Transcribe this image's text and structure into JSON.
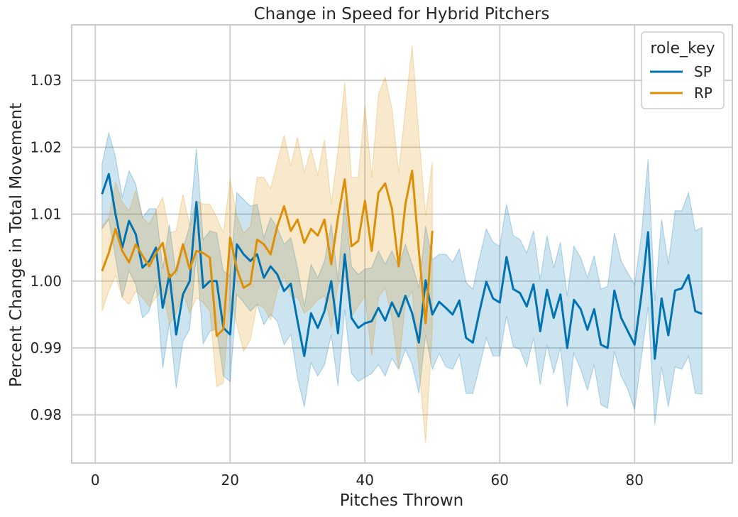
{
  "chart_data": {
    "type": "line",
    "title": "Change in Speed for Hybrid Pitchers",
    "xlabel": "Pitches Thrown",
    "ylabel": "Percent Change in Total Movement",
    "xlim": [
      -3.5,
      94.5
    ],
    "ylim": [
      0.9728,
      1.0383
    ],
    "xticks": [
      0,
      20,
      40,
      60,
      80
    ],
    "yticks": [
      0.98,
      0.99,
      1.0,
      1.01,
      1.02,
      1.03
    ],
    "ytick_labels": [
      "0.98",
      "0.99",
      "1.00",
      "1.01",
      "1.02",
      "1.03"
    ],
    "grid": true,
    "legend": {
      "title": "role_key",
      "position": "top-right"
    },
    "series": [
      {
        "name": "SP",
        "color": "#0173b2",
        "x": [
          1,
          2,
          3,
          4,
          5,
          6,
          7,
          8,
          9,
          10,
          11,
          12,
          13,
          14,
          15,
          16,
          17,
          18,
          19,
          20,
          21,
          22,
          23,
          24,
          25,
          26,
          27,
          28,
          29,
          30,
          31,
          32,
          33,
          34,
          35,
          36,
          37,
          38,
          39,
          40,
          41,
          42,
          43,
          44,
          45,
          46,
          47,
          48,
          49,
          50,
          51,
          52,
          53,
          54,
          55,
          56,
          57,
          58,
          59,
          60,
          61,
          62,
          63,
          64,
          65,
          66,
          67,
          68,
          69,
          70,
          71,
          72,
          73,
          74,
          75,
          76,
          77,
          78,
          79,
          80,
          81,
          82,
          83,
          84,
          85,
          86,
          87,
          88,
          89,
          90
        ],
        "y": [
          1.013,
          1.016,
          1.01,
          1.005,
          1.009,
          1.007,
          1.002,
          1.003,
          1.005,
          0.996,
          1.001,
          0.992,
          0.998,
          1.0,
          1.0118,
          0.999,
          1.0,
          1.0,
          0.993,
          0.992,
          1.0055,
          1.004,
          1.003,
          1.004,
          1.0005,
          1.0022,
          1.001,
          0.9985,
          0.9996,
          0.994,
          0.9888,
          0.9952,
          0.993,
          0.9955,
          1.0,
          0.9922,
          1.004,
          0.9945,
          0.993,
          0.9937,
          0.994,
          0.996,
          0.9941,
          0.9968,
          0.9947,
          0.9978,
          0.9952,
          0.9908,
          1.0001,
          0.995,
          0.9969,
          0.996,
          0.995,
          0.9971,
          0.9915,
          0.9908,
          0.9955,
          0.9999,
          0.9974,
          0.9968,
          1.0036,
          0.9988,
          0.9982,
          0.9962,
          0.9995,
          0.9925,
          0.9987,
          0.9945,
          0.998,
          0.99,
          0.9972,
          0.9958,
          0.9927,
          0.9958,
          0.9905,
          0.99,
          0.9986,
          0.9945,
          0.9925,
          0.9905,
          0.9978,
          1.0073,
          0.9884,
          0.9974,
          0.9919,
          0.9986,
          0.9989,
          1.0009,
          0.9955,
          0.9951
        ],
        "ci_upper": [
          1.0175,
          1.0222,
          1.0185,
          1.0125,
          1.0165,
          1.0145,
          1.0095,
          1.0108,
          1.0108,
          1.0018,
          1.0085,
          1.0008,
          1.0048,
          1.0082,
          1.0198,
          1.0062,
          1.0075,
          1.0072,
          1.0015,
          1.0008,
          1.0132,
          1.0122,
          1.0112,
          1.0115,
          1.0065,
          1.0095,
          1.008,
          1.0055,
          1.0065,
          1.002,
          0.9962,
          1.0025,
          1.0005,
          1.003,
          1.0085,
          1.0002,
          1.0122,
          1.0022,
          1.001,
          1.0018,
          1.002,
          1.0045,
          1.0025,
          1.0045,
          1.0022,
          1.0055,
          1.0025,
          0.999,
          1.0082,
          1.0032,
          1.004,
          1.004,
          1.0028,
          1.0048,
          0.9998,
          0.9988,
          1.0035,
          1.0078,
          1.0058,
          1.0052,
          1.0115,
          1.0068,
          1.0062,
          1.0042,
          1.0075,
          1.0002,
          1.0068,
          1.002,
          1.0058,
          0.9978,
          1.0052,
          1.0035,
          1.0005,
          1.0038,
          0.9988,
          0.9992,
          1.0072,
          1.003,
          1.0012,
          0.9995,
          1.0068,
          1.0182,
          0.997,
          1.0092,
          1.0025,
          1.0105,
          1.0105,
          1.0132,
          1.0075,
          1.008
        ],
        "ci_lower": [
          1.0078,
          1.0092,
          1.0035,
          0.9975,
          1.0015,
          0.9995,
          0.9945,
          0.9955,
          0.9995,
          0.987,
          0.9938,
          0.984,
          0.991,
          0.9928,
          1.004,
          0.9906,
          0.9925,
          0.9928,
          0.9858,
          0.985,
          0.998,
          0.9968,
          0.9955,
          0.9965,
          0.9935,
          0.995,
          0.994,
          0.9905,
          0.992,
          0.9855,
          0.9812,
          0.9878,
          0.9858,
          0.9875,
          0.992,
          0.9843,
          0.9958,
          0.9862,
          0.985,
          0.9856,
          0.9862,
          0.9875,
          0.9858,
          0.9885,
          0.9868,
          0.9898,
          0.9875,
          0.9832,
          0.992,
          0.9868,
          0.9892,
          0.9872,
          0.9868,
          0.989,
          0.9832,
          0.9832,
          0.9872,
          0.9915,
          0.9888,
          0.9888,
          0.9948,
          0.9902,
          0.9898,
          0.9872,
          0.9915,
          0.9845,
          0.9905,
          0.9862,
          0.99,
          0.9812,
          0.9892,
          0.9868,
          0.9837,
          0.9875,
          0.9815,
          0.981,
          0.9895,
          0.9858,
          0.9838,
          0.9808,
          0.9885,
          0.9962,
          0.9786,
          0.9872,
          0.9812,
          0.9872,
          0.9868,
          0.9888,
          0.9832,
          0.9831
        ]
      },
      {
        "name": "RP",
        "color": "#de8f05",
        "x": [
          1,
          2,
          3,
          4,
          5,
          6,
          7,
          8,
          9,
          10,
          11,
          12,
          13,
          14,
          15,
          16,
          17,
          18,
          19,
          20,
          21,
          22,
          23,
          24,
          25,
          26,
          27,
          28,
          29,
          30,
          31,
          32,
          33,
          34,
          35,
          36,
          37,
          38,
          39,
          40,
          41,
          42,
          43,
          44,
          45,
          46,
          47,
          48,
          49,
          50
        ],
        "y": [
          1.0015,
          1.0042,
          1.0078,
          1.0045,
          1.0028,
          1.0055,
          1.0038,
          1.0022,
          1.0042,
          1.0057,
          1.0005,
          1.0016,
          1.0055,
          1.0018,
          1.0045,
          1.0042,
          1.0035,
          0.9918,
          0.9928,
          1.0065,
          1.0018,
          0.999,
          0.9996,
          1.0062,
          1.0055,
          1.004,
          1.0082,
          1.0112,
          1.0075,
          1.0092,
          1.0057,
          1.0078,
          1.0068,
          1.0092,
          1.0025,
          1.0095,
          1.0152,
          1.0052,
          1.006,
          1.012,
          1.0045,
          1.0132,
          1.0146,
          1.0108,
          1.0022,
          1.0115,
          1.0165,
          1.0045,
          0.9937,
          1.0075
        ],
        "ci_upper": [
          1.0082,
          1.0095,
          1.0148,
          1.0118,
          1.0105,
          1.0135,
          1.0095,
          1.0085,
          1.0105,
          1.0125,
          1.0072,
          1.0075,
          1.013,
          1.0082,
          1.012,
          1.0115,
          1.0115,
          1.0095,
          1.0072,
          1.0152,
          1.0098,
          1.0072,
          1.0082,
          1.0155,
          1.0155,
          1.0138,
          1.0178,
          1.0218,
          1.0172,
          1.0215,
          1.0162,
          1.0198,
          1.0158,
          1.0212,
          1.0115,
          1.0195,
          1.0297,
          1.0155,
          1.0155,
          1.0262,
          1.0155,
          1.0278,
          1.0305,
          1.0258,
          1.0162,
          1.0258,
          1.0352,
          1.0218,
          1.0098,
          1.0178
        ],
        "ci_lower": [
          0.9955,
          0.9985,
          1.0008,
          0.9975,
          0.9965,
          0.9985,
          0.9975,
          0.9962,
          0.9975,
          0.9988,
          0.9935,
          0.9952,
          0.9982,
          0.9952,
          0.9975,
          0.9968,
          0.9955,
          0.9842,
          0.9848,
          0.9978,
          0.9935,
          0.9895,
          0.9912,
          0.9965,
          0.996,
          0.9942,
          0.9985,
          1.0008,
          0.9978,
          0.9975,
          0.9952,
          0.996,
          0.9972,
          0.9978,
          0.993,
          0.9995,
          1.0008,
          0.9948,
          0.9962,
          0.9978,
          0.9888,
          0.9975,
          0.999,
          0.9945,
          0.9868,
          0.9968,
          0.9985,
          0.9872,
          0.9758,
          0.9928
        ]
      }
    ]
  }
}
